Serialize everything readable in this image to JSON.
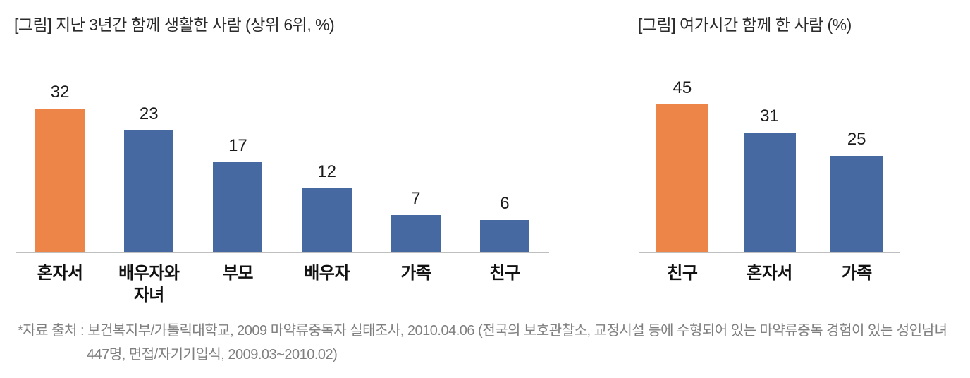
{
  "chart_data": [
    {
      "type": "bar",
      "title": "[그림] 지난 3년간 함께 생활한 사람 (상위 6위, %)",
      "categories": [
        "혼자서",
        "배우자와\n자녀",
        "부모",
        "배우자",
        "가족",
        "친구"
      ],
      "values": [
        32,
        23,
        17,
        12,
        7,
        6
      ],
      "ylim": [
        0,
        32
      ],
      "bar_colors": [
        "#EE8548",
        "#4569A0",
        "#4569A0",
        "#4569A0",
        "#4569A0",
        "#4569A0"
      ],
      "data_labels": true,
      "grid": false,
      "legend_position": "none"
    },
    {
      "type": "bar",
      "title": "[그림] 여가시간 함께 한 사람 (%)",
      "categories": [
        "친구",
        "혼자서",
        "가족"
      ],
      "values": [
        45,
        31,
        25
      ],
      "ylim": [
        0,
        45
      ],
      "bar_colors": [
        "#EE8548",
        "#4569A0",
        "#4569A0"
      ],
      "data_labels": true,
      "grid": false,
      "legend_position": "none"
    }
  ],
  "footnote": {
    "line1": "*자료 출처 : 보건복지부/가톨릭대학교, 2009 마약류중독자 실태조사, 2010.04.06 (전국의 보호관찰소, 교정시설 등에 수형되어 있는 마약류중독 경험이 있는 성인남녀",
    "line2": "447명, 면접/자기기입식, 2009.03~2010.02)"
  },
  "colors": {
    "accent_orange": "#EE8548",
    "bar_blue": "#4569A0",
    "axis_gray": "#BFBFBF",
    "footnote_gray": "#7F7F7F"
  }
}
